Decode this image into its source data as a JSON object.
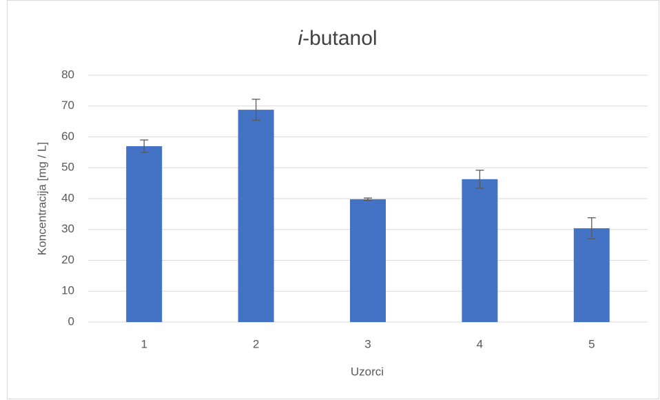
{
  "chart_data": {
    "type": "bar",
    "title": "i-butanol",
    "x_label": "Uzorci",
    "y_label": "Koncentracija [mg / L]",
    "categories": [
      "1",
      "2",
      "3",
      "4",
      "5"
    ],
    "values": [
      57,
      68.8,
      39.8,
      46.3,
      30.4
    ],
    "errors": [
      2,
      3.4,
      0.4,
      2.9,
      3.4
    ],
    "color": "#4472c4",
    "ylim": [
      0,
      80
    ],
    "yticks": [
      0,
      10,
      20,
      30,
      40,
      50,
      60,
      70,
      80
    ],
    "grid": true
  }
}
